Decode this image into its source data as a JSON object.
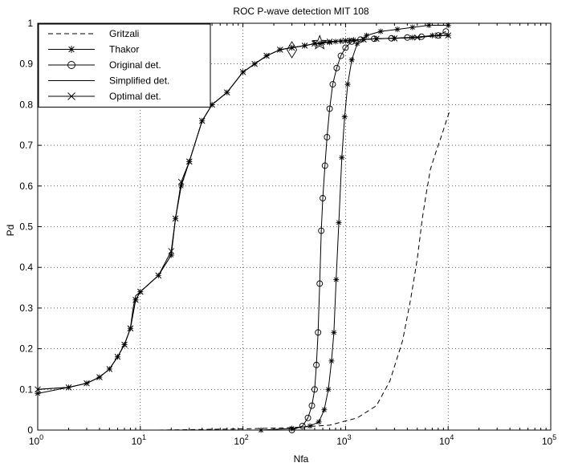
{
  "chart_data": {
    "type": "line",
    "title": "ROC P-wave detection MIT 108",
    "xlabel": "Nfa",
    "ylabel": "Pd",
    "xscale": "log",
    "xlim": [
      1,
      100000
    ],
    "ylim": [
      0,
      1
    ],
    "grid": true,
    "legend_position": "top-left",
    "x_ticks": [
      {
        "value": 1,
        "base": "10",
        "exp": "0"
      },
      {
        "value": 10,
        "base": "10",
        "exp": "1"
      },
      {
        "value": 100,
        "base": "10",
        "exp": "2"
      },
      {
        "value": 1000,
        "base": "10",
        "exp": "3"
      },
      {
        "value": 10000,
        "base": "10",
        "exp": "4"
      },
      {
        "value": 100000,
        "base": "10",
        "exp": "5"
      }
    ],
    "y_ticks": [
      "0",
      "0.1",
      "0.2",
      "0.3",
      "0.4",
      "0.5",
      "0.6",
      "0.7",
      "0.8",
      "0.9",
      "1"
    ],
    "series": [
      {
        "name": "Gritzali",
        "style": "dashed",
        "marker": "none",
        "x": [
          15,
          100,
          300,
          700,
          1300,
          2000,
          2700,
          3600,
          4300,
          5000,
          5600,
          6100,
          6400,
          6700,
          7300,
          8000,
          8800,
          9600,
          10200,
          11000
        ],
        "y": [
          0.0,
          0.003,
          0.006,
          0.012,
          0.03,
          0.06,
          0.12,
          0.22,
          0.32,
          0.42,
          0.52,
          0.58,
          0.61,
          0.64,
          0.67,
          0.7,
          0.73,
          0.76,
          0.78,
          0.78
        ]
      },
      {
        "name": "Thakor",
        "style": "solid",
        "marker": "star",
        "x": [
          1,
          2,
          3,
          4,
          5,
          6,
          7,
          8,
          9,
          10,
          15,
          20,
          22,
          25,
          30,
          40,
          50,
          70,
          100,
          130,
          170,
          230,
          300,
          400,
          500,
          560,
          600,
          700,
          800,
          900,
          1000,
          1100,
          1200,
          1500,
          2000,
          3000,
          4500,
          7000,
          10000
        ],
        "y": [
          0.09,
          0.105,
          0.115,
          0.13,
          0.15,
          0.18,
          0.21,
          0.25,
          0.32,
          0.34,
          0.38,
          0.43,
          0.52,
          0.6,
          0.66,
          0.76,
          0.8,
          0.83,
          0.88,
          0.9,
          0.92,
          0.935,
          0.94,
          0.945,
          0.95,
          0.95,
          0.952,
          0.953,
          0.955,
          0.956,
          0.957,
          0.958,
          0.959,
          0.96,
          0.962,
          0.963,
          0.965,
          0.97,
          0.97
        ]
      },
      {
        "name": "Thakor",
        "style": "solid",
        "marker": "star",
        "x": [
          150,
          300,
          450,
          550,
          620,
          680,
          730,
          770,
          810,
          860,
          920,
          980,
          1050,
          1150,
          1300,
          1600,
          2200,
          3200,
          4500,
          6500,
          10000
        ],
        "y": [
          0.0,
          0.004,
          0.01,
          0.02,
          0.05,
          0.1,
          0.17,
          0.24,
          0.37,
          0.51,
          0.67,
          0.77,
          0.85,
          0.91,
          0.95,
          0.97,
          0.98,
          0.985,
          0.99,
          0.995,
          0.995
        ]
      },
      {
        "name": "Original det.",
        "style": "solid",
        "marker": "circle",
        "x": [
          300,
          380,
          430,
          470,
          500,
          520,
          540,
          560,
          580,
          600,
          630,
          660,
          700,
          750,
          820,
          900,
          1000,
          1150,
          1400,
          1900,
          2800,
          4000,
          5500,
          8000,
          9500
        ],
        "y": [
          0.0,
          0.01,
          0.03,
          0.06,
          0.1,
          0.16,
          0.24,
          0.36,
          0.49,
          0.57,
          0.65,
          0.72,
          0.79,
          0.85,
          0.89,
          0.92,
          0.94,
          0.955,
          0.96,
          0.962,
          0.963,
          0.965,
          0.967,
          0.97,
          0.98
        ]
      },
      {
        "name": "Simplified det.",
        "style": "solid",
        "marker": "none",
        "x": [
          1,
          2,
          3,
          4,
          5,
          6,
          7,
          8,
          8.5,
          9,
          10,
          15,
          20,
          22,
          25,
          30,
          40,
          50,
          70,
          100,
          130,
          170,
          230,
          300,
          400,
          500,
          560,
          700,
          1000,
          1500,
          2000,
          3000,
          5000,
          8000,
          10000
        ],
        "y": [
          0.1,
          0.105,
          0.115,
          0.13,
          0.15,
          0.18,
          0.21,
          0.25,
          0.3,
          0.33,
          0.34,
          0.38,
          0.43,
          0.52,
          0.6,
          0.66,
          0.76,
          0.8,
          0.83,
          0.88,
          0.9,
          0.92,
          0.935,
          0.94,
          0.945,
          0.95,
          0.95,
          0.955,
          0.957,
          0.96,
          0.962,
          0.963,
          0.965,
          0.97,
          0.97
        ]
      },
      {
        "name": "Optimal det.",
        "style": "solid",
        "marker": "x",
        "x": [
          1,
          2,
          3,
          4,
          5,
          6,
          7,
          8,
          9,
          10,
          15,
          20,
          22,
          25,
          30,
          40,
          50,
          70,
          100,
          130,
          170,
          230,
          300,
          400,
          500,
          700,
          1000,
          1500,
          2000,
          3000,
          5000,
          8000,
          10000
        ],
        "y": [
          0.1,
          0.105,
          0.115,
          0.13,
          0.15,
          0.18,
          0.21,
          0.25,
          0.32,
          0.34,
          0.38,
          0.44,
          0.52,
          0.61,
          0.66,
          0.76,
          0.8,
          0.83,
          0.88,
          0.9,
          0.92,
          0.935,
          0.94,
          0.945,
          0.95,
          0.955,
          0.957,
          0.96,
          0.962,
          0.963,
          0.965,
          0.97,
          0.97
        ]
      }
    ],
    "annotations": [
      {
        "marker": "diamond",
        "x": 300,
        "y": 0.935
      },
      {
        "marker": "pentagram",
        "x": 560,
        "y": 0.952
      }
    ],
    "legend": [
      {
        "name": "Gritzali",
        "style": "dashed",
        "marker": "none"
      },
      {
        "name": "Thakor",
        "style": "solid",
        "marker": "star"
      },
      {
        "name": "Original det.",
        "style": "solid",
        "marker": "circle"
      },
      {
        "name": "Simplified det.",
        "style": "solid",
        "marker": "none"
      },
      {
        "name": "Optimal det.",
        "style": "solid",
        "marker": "x"
      }
    ]
  }
}
